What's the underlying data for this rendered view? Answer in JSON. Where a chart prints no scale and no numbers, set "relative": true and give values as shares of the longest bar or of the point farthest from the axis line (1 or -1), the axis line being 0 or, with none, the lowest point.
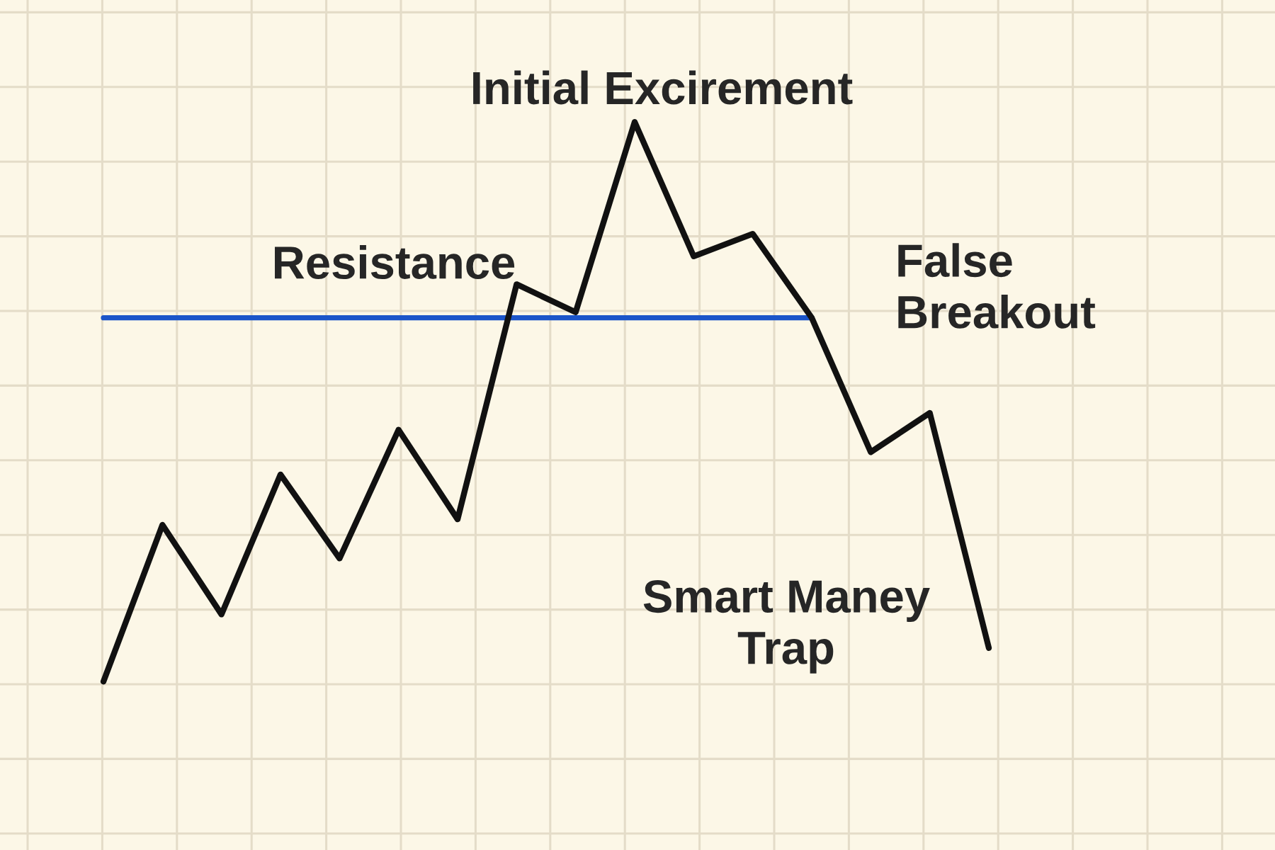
{
  "chart_data": {
    "type": "line",
    "relative": true,
    "grid": true,
    "categories": [
      null,
      null,
      null,
      null,
      null,
      null,
      null,
      null,
      null,
      null,
      null,
      null,
      null,
      null,
      null,
      null
    ],
    "series": [
      {
        "color": "#111111",
        "values": [
          0,
          0.28,
          0.12,
          0.37,
          0.22,
          0.45,
          0.29,
          0.71,
          0.66,
          1,
          0.76,
          0.8,
          0.65,
          0.41,
          0.48,
          0.06
        ]
      },
      {
        "name": "Resistance",
        "color": "#1b55c9",
        "values": [
          0.65,
          0.65,
          0.65,
          0.65,
          0.65,
          0.65,
          0.65,
          0.65,
          0.65,
          0.65,
          0.65,
          0.65,
          0.65,
          null,
          null,
          null
        ]
      }
    ],
    "annotations": [
      "Initial Excirement",
      "False\nBreakout",
      "Smart Maney\nTrap"
    ]
  }
}
